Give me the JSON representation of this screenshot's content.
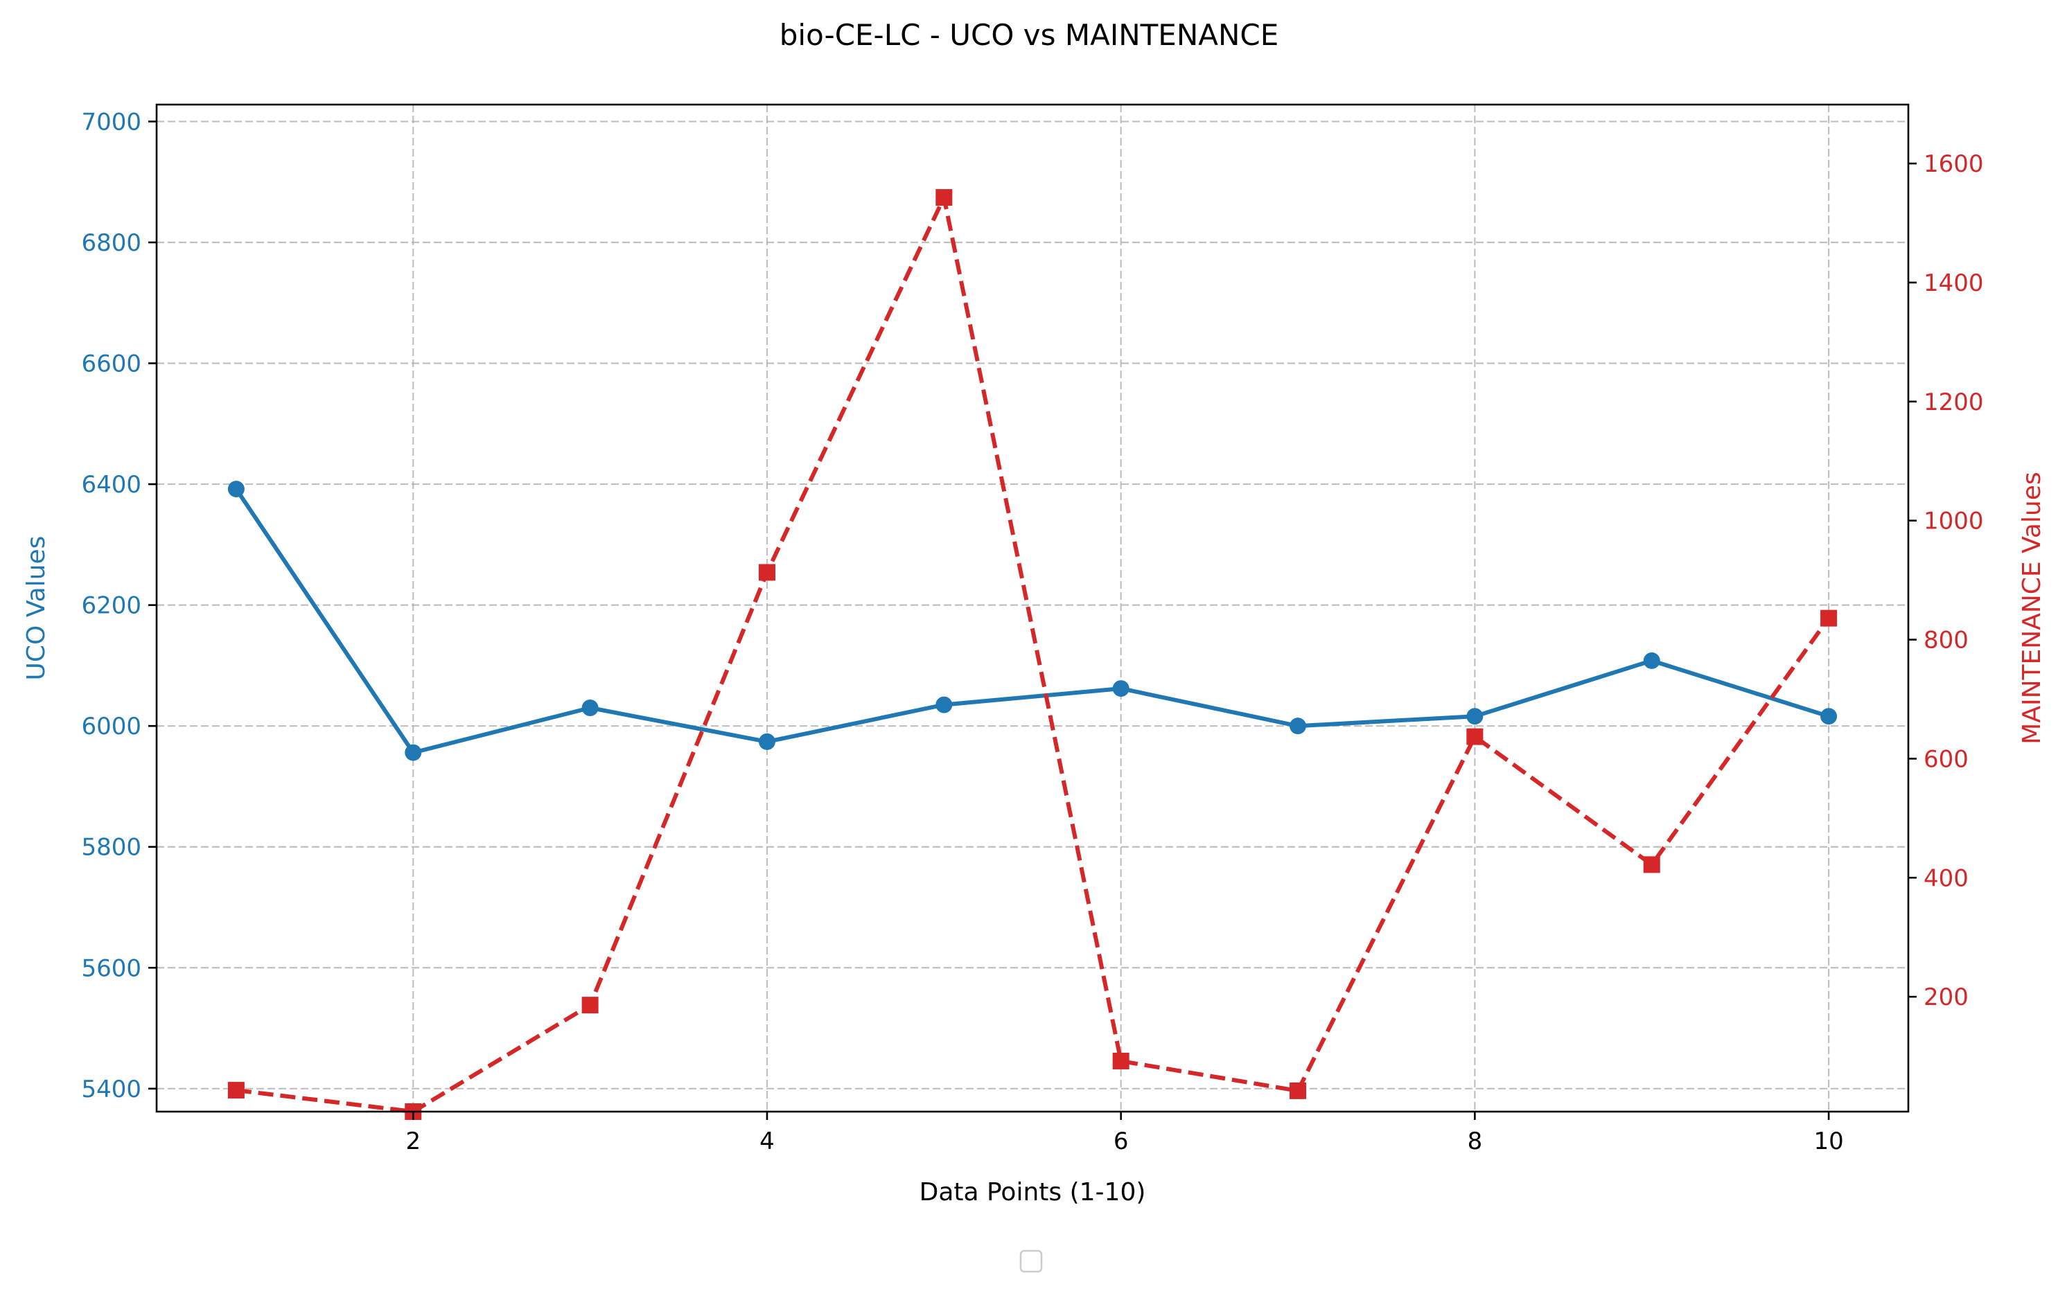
{
  "chart_data": {
    "type": "line",
    "title": "bio-CE-LC - UCO vs MAINTENANCE",
    "xlabel": "Data Points (1-10)",
    "x": [
      1,
      2,
      3,
      4,
      5,
      6,
      7,
      8,
      9,
      10
    ],
    "xlim": [
      0.55,
      10.45
    ],
    "xticks": [
      2,
      4,
      6,
      8,
      10
    ],
    "grid": true,
    "legend": "lower-center-outside (empty)",
    "y_left": {
      "label": "UCO Values",
      "color": "#1f77b4",
      "ylim": [
        5362,
        7028
      ],
      "ticks": [
        5400,
        5600,
        5800,
        6000,
        6200,
        6400,
        6600,
        6800,
        7000
      ]
    },
    "y_right": {
      "label": "MAINTENANCE Values",
      "color": "#d62728",
      "ylim": [
        7,
        1699
      ],
      "ticks": [
        200,
        400,
        600,
        800,
        1000,
        1200,
        1400,
        1600
      ]
    },
    "series": [
      {
        "axis": "left",
        "color": "#1f77b4",
        "linestyle": "solid",
        "marker": "circle",
        "values": [
          6392,
          5956,
          6030,
          5974,
          6035,
          6062,
          6000,
          6016,
          6108,
          6016
        ]
      },
      {
        "axis": "right",
        "color": "#d62728",
        "linestyle": "dashed",
        "marker": "square",
        "values": [
          43,
          7,
          186,
          913,
          1543,
          92,
          42,
          637,
          422,
          836
        ]
      }
    ]
  }
}
